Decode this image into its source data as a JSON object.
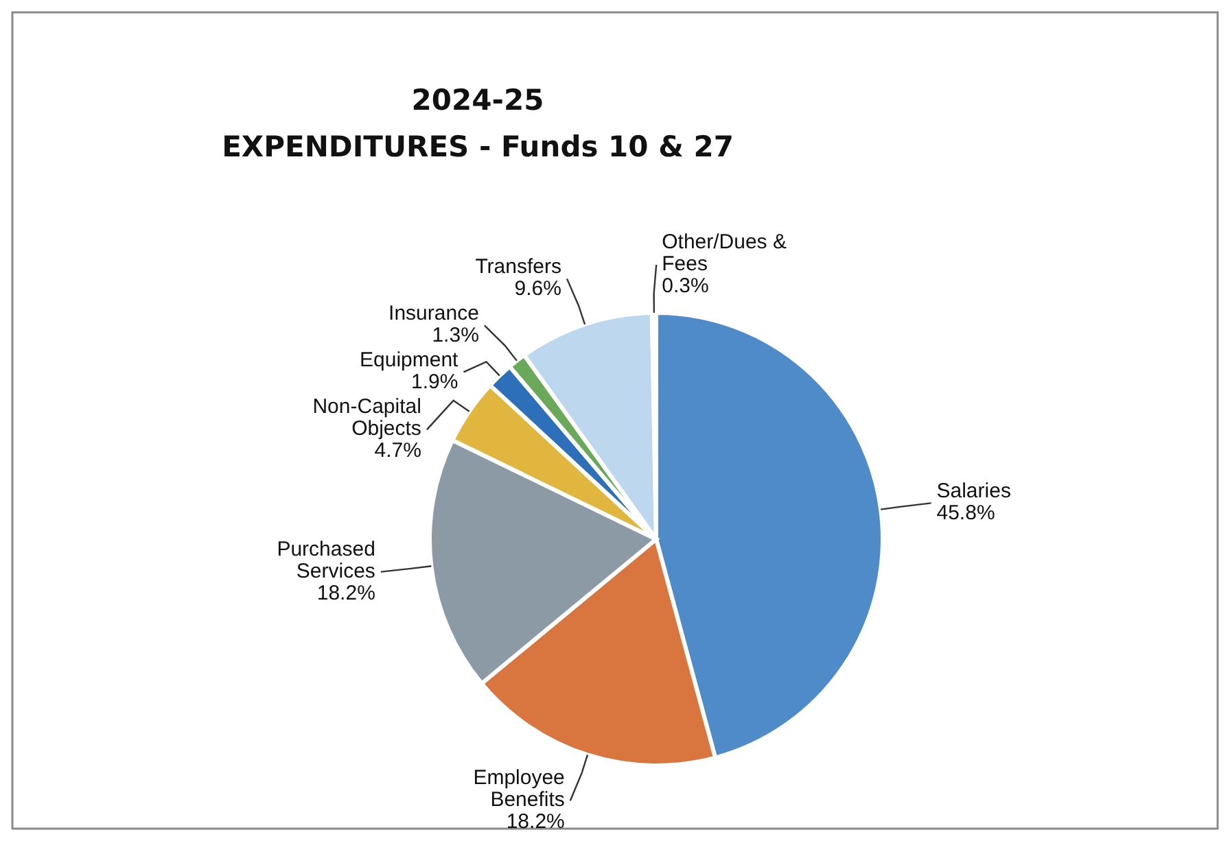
{
  "chart_data": {
    "type": "pie",
    "title": "2024-25\nEXPENDITURES - Funds 10 & 27",
    "categories": [
      "Salaries",
      "Employee Benefits",
      "Purchased Services",
      "Non-Capital Objects",
      "Equipment",
      "Insurance",
      "Transfers",
      "Other/Dues & Fees"
    ],
    "values": [
      45.8,
      18.2,
      18.2,
      4.7,
      1.9,
      1.3,
      9.6,
      0.3
    ],
    "value_labels": [
      "45.8%",
      "18.2%",
      "18.2%",
      "4.7%",
      "1.9%",
      "1.3%",
      "9.6%",
      "0.3%"
    ],
    "colors": [
      "#4f8ac9",
      "#d9763f",
      "#8c9aa6",
      "#e0b63f",
      "#2e6fba",
      "#6aa85a",
      "#bcd7ee",
      "#e8b0a8"
    ],
    "legend": false
  }
}
